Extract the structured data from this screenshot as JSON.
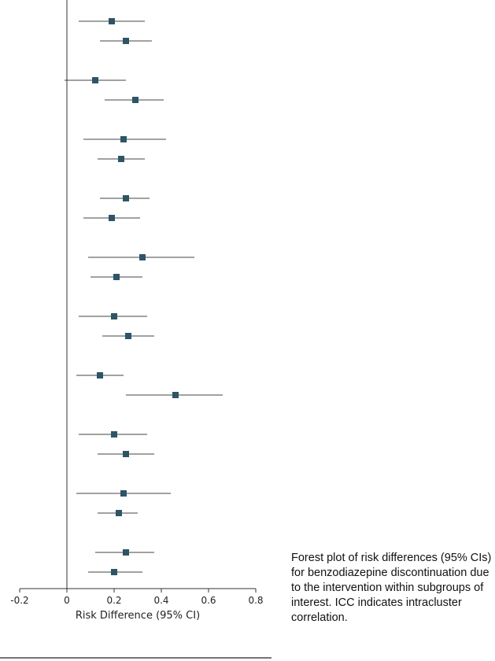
{
  "chart_data": {
    "type": "forest",
    "xlabel": "Risk Difference (95% CI)",
    "xlim": [
      -0.2,
      0.8
    ],
    "xticks": [
      -0.2,
      0,
      0.2,
      0.4,
      0.6,
      0.8
    ],
    "xtick_labels": [
      "-0.2",
      "0",
      "0.2",
      "0.4",
      "0.6",
      "0.8"
    ],
    "reference_line": 0,
    "marker_color": "#2e5566",
    "points": [
      {
        "estimate": 0.19,
        "ci_low": 0.05,
        "ci_high": 0.33
      },
      {
        "estimate": 0.25,
        "ci_low": 0.14,
        "ci_high": 0.36
      },
      {
        "estimate": 0.12,
        "ci_low": -0.01,
        "ci_high": 0.25
      },
      {
        "estimate": 0.29,
        "ci_low": 0.16,
        "ci_high": 0.41
      },
      {
        "estimate": 0.24,
        "ci_low": 0.07,
        "ci_high": 0.42
      },
      {
        "estimate": 0.23,
        "ci_low": 0.13,
        "ci_high": 0.33
      },
      {
        "estimate": 0.25,
        "ci_low": 0.14,
        "ci_high": 0.35
      },
      {
        "estimate": 0.19,
        "ci_low": 0.07,
        "ci_high": 0.31
      },
      {
        "estimate": 0.32,
        "ci_low": 0.09,
        "ci_high": 0.54
      },
      {
        "estimate": 0.21,
        "ci_low": 0.1,
        "ci_high": 0.32
      },
      {
        "estimate": 0.2,
        "ci_low": 0.05,
        "ci_high": 0.34
      },
      {
        "estimate": 0.26,
        "ci_low": 0.15,
        "ci_high": 0.37
      },
      {
        "estimate": 0.14,
        "ci_low": 0.04,
        "ci_high": 0.24
      },
      {
        "estimate": 0.46,
        "ci_low": 0.25,
        "ci_high": 0.66
      },
      {
        "estimate": 0.2,
        "ci_low": 0.05,
        "ci_high": 0.34
      },
      {
        "estimate": 0.25,
        "ci_low": 0.13,
        "ci_high": 0.37
      },
      {
        "estimate": 0.24,
        "ci_low": 0.04,
        "ci_high": 0.44
      },
      {
        "estimate": 0.22,
        "ci_low": 0.13,
        "ci_high": 0.3
      },
      {
        "estimate": 0.25,
        "ci_low": 0.12,
        "ci_high": 0.37
      },
      {
        "estimate": 0.2,
        "ci_low": 0.09,
        "ci_high": 0.32
      }
    ]
  },
  "caption": "Forest plot of risk differences (95% CIs) for benzodiazepine discontinuation due to the intervention within subgroups of interest. ICC indicates intracluster correlation."
}
